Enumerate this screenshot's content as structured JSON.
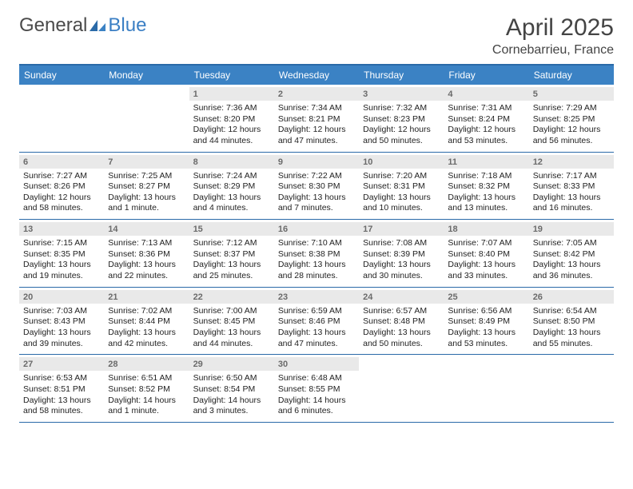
{
  "logo": {
    "left": "General",
    "right": "Blue"
  },
  "title": "April 2025",
  "location": "Cornebarrieu, France",
  "colors": {
    "header_bg": "#3b82c4",
    "rule": "#2a6aa8",
    "daynum_bg": "#e9e9e9",
    "daynum_fg": "#6b6b6b",
    "logo_gray": "#4a4a4a",
    "logo_blue": "#3b7fc4",
    "text": "#222222",
    "background": "#ffffff"
  },
  "dows": [
    "Sunday",
    "Monday",
    "Tuesday",
    "Wednesday",
    "Thursday",
    "Friday",
    "Saturday"
  ],
  "leading_blanks": 2,
  "days": [
    {
      "n": "1",
      "sr": "7:36 AM",
      "ss": "8:20 PM",
      "dl": "12 hours and 44 minutes."
    },
    {
      "n": "2",
      "sr": "7:34 AM",
      "ss": "8:21 PM",
      "dl": "12 hours and 47 minutes."
    },
    {
      "n": "3",
      "sr": "7:32 AM",
      "ss": "8:23 PM",
      "dl": "12 hours and 50 minutes."
    },
    {
      "n": "4",
      "sr": "7:31 AM",
      "ss": "8:24 PM",
      "dl": "12 hours and 53 minutes."
    },
    {
      "n": "5",
      "sr": "7:29 AM",
      "ss": "8:25 PM",
      "dl": "12 hours and 56 minutes."
    },
    {
      "n": "6",
      "sr": "7:27 AM",
      "ss": "8:26 PM",
      "dl": "12 hours and 58 minutes."
    },
    {
      "n": "7",
      "sr": "7:25 AM",
      "ss": "8:27 PM",
      "dl": "13 hours and 1 minute."
    },
    {
      "n": "8",
      "sr": "7:24 AM",
      "ss": "8:29 PM",
      "dl": "13 hours and 4 minutes."
    },
    {
      "n": "9",
      "sr": "7:22 AM",
      "ss": "8:30 PM",
      "dl": "13 hours and 7 minutes."
    },
    {
      "n": "10",
      "sr": "7:20 AM",
      "ss": "8:31 PM",
      "dl": "13 hours and 10 minutes."
    },
    {
      "n": "11",
      "sr": "7:18 AM",
      "ss": "8:32 PM",
      "dl": "13 hours and 13 minutes."
    },
    {
      "n": "12",
      "sr": "7:17 AM",
      "ss": "8:33 PM",
      "dl": "13 hours and 16 minutes."
    },
    {
      "n": "13",
      "sr": "7:15 AM",
      "ss": "8:35 PM",
      "dl": "13 hours and 19 minutes."
    },
    {
      "n": "14",
      "sr": "7:13 AM",
      "ss": "8:36 PM",
      "dl": "13 hours and 22 minutes."
    },
    {
      "n": "15",
      "sr": "7:12 AM",
      "ss": "8:37 PM",
      "dl": "13 hours and 25 minutes."
    },
    {
      "n": "16",
      "sr": "7:10 AM",
      "ss": "8:38 PM",
      "dl": "13 hours and 28 minutes."
    },
    {
      "n": "17",
      "sr": "7:08 AM",
      "ss": "8:39 PM",
      "dl": "13 hours and 30 minutes."
    },
    {
      "n": "18",
      "sr": "7:07 AM",
      "ss": "8:40 PM",
      "dl": "13 hours and 33 minutes."
    },
    {
      "n": "19",
      "sr": "7:05 AM",
      "ss": "8:42 PM",
      "dl": "13 hours and 36 minutes."
    },
    {
      "n": "20",
      "sr": "7:03 AM",
      "ss": "8:43 PM",
      "dl": "13 hours and 39 minutes."
    },
    {
      "n": "21",
      "sr": "7:02 AM",
      "ss": "8:44 PM",
      "dl": "13 hours and 42 minutes."
    },
    {
      "n": "22",
      "sr": "7:00 AM",
      "ss": "8:45 PM",
      "dl": "13 hours and 44 minutes."
    },
    {
      "n": "23",
      "sr": "6:59 AM",
      "ss": "8:46 PM",
      "dl": "13 hours and 47 minutes."
    },
    {
      "n": "24",
      "sr": "6:57 AM",
      "ss": "8:48 PM",
      "dl": "13 hours and 50 minutes."
    },
    {
      "n": "25",
      "sr": "6:56 AM",
      "ss": "8:49 PM",
      "dl": "13 hours and 53 minutes."
    },
    {
      "n": "26",
      "sr": "6:54 AM",
      "ss": "8:50 PM",
      "dl": "13 hours and 55 minutes."
    },
    {
      "n": "27",
      "sr": "6:53 AM",
      "ss": "8:51 PM",
      "dl": "13 hours and 58 minutes."
    },
    {
      "n": "28",
      "sr": "6:51 AM",
      "ss": "8:52 PM",
      "dl": "14 hours and 1 minute."
    },
    {
      "n": "29",
      "sr": "6:50 AM",
      "ss": "8:54 PM",
      "dl": "14 hours and 3 minutes."
    },
    {
      "n": "30",
      "sr": "6:48 AM",
      "ss": "8:55 PM",
      "dl": "14 hours and 6 minutes."
    }
  ],
  "labels": {
    "sunrise": "Sunrise: ",
    "sunset": "Sunset: ",
    "daylight": "Daylight: "
  }
}
